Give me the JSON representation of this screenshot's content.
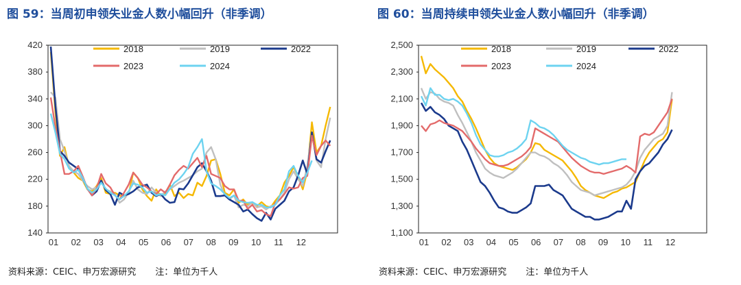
{
  "colors": {
    "2018": "#f5b800",
    "2019": "#bfbfbf",
    "2022": "#1b3a8c",
    "2023": "#e36a6a",
    "2024": "#6dd3f0"
  },
  "charts": [
    {
      "title": "图 59：当周初申领失业金人数小幅回升（非季调）",
      "source": "资料来源：CEIC、申万宏源研究",
      "note": "注：单位为千人"
    },
    {
      "title": "图 60：当周持续申领失业金人数小幅回升（非季调）",
      "source": "资料来源：CEIC、申万宏源研究",
      "note": "注：单位为千人"
    }
  ],
  "chart_data": [
    {
      "type": "line",
      "title": "图 59：当周初申领失业金人数小幅回升（非季调）",
      "xlabel": "",
      "ylabel": "",
      "ylim": [
        140,
        420
      ],
      "yticks": [
        "140",
        "180",
        "220",
        "260",
        "300",
        "340",
        "380",
        "420"
      ],
      "xticks": [
        "01",
        "02",
        "03",
        "04",
        "05",
        "06",
        "07",
        "08",
        "09",
        "10",
        "11",
        "12"
      ],
      "x_unit": "week",
      "legend": [
        "2018",
        "2019",
        "2022",
        "2023",
        "2024"
      ],
      "series": [
        {
          "name": "2018",
          "values": [
            410,
            320,
            255,
            268,
            238,
            230,
            222,
            218,
            205,
            202,
            210,
            222,
            200,
            198,
            200,
            196,
            195,
            198,
            230,
            222,
            205,
            195,
            188,
            205,
            195,
            198,
            212,
            195,
            200,
            192,
            198,
            196,
            215,
            210,
            225,
            248,
            250,
            228,
            200,
            196,
            205,
            185,
            190,
            182,
            185,
            180,
            186,
            180,
            178,
            188,
            196,
            215,
            225,
            238,
            225,
            205,
            232,
            305,
            260,
            270,
            300,
            328
          ]
        },
        {
          "name": "2019",
          "values": [
            350,
            342,
            280,
            262,
            240,
            232,
            228,
            218,
            210,
            205,
            208,
            218,
            205,
            202,
            198,
            185,
            190,
            200,
            218,
            205,
            200,
            198,
            208,
            200,
            195,
            202,
            205,
            210,
            215,
            218,
            222,
            226,
            232,
            236,
            260,
            268,
            250,
            212,
            196,
            190,
            196,
            178,
            182,
            180,
            186,
            178,
            180,
            175,
            180,
            182,
            190,
            200,
            220,
            232,
            220,
            210,
            240,
            290,
            248,
            238,
            280,
            312
          ]
        },
        {
          "name": "2022",
          "values": [
            418,
            330,
            262,
            255,
            245,
            240,
            235,
            222,
            206,
            196,
            202,
            218,
            204,
            198,
            182,
            200,
            196,
            198,
            202,
            208,
            210,
            212,
            200,
            195,
            198,
            190,
            185,
            186,
            206,
            205,
            214,
            226,
            238,
            244,
            232,
            218,
            195,
            195,
            196,
            190,
            186,
            182,
            172,
            175,
            168,
            162,
            158,
            170,
            160,
            176,
            182,
            188,
            202,
            208,
            226,
            248,
            228,
            290,
            250,
            245,
            262,
            278
          ]
        },
        {
          "name": "2023",
          "values": [
            342,
            298,
            262,
            228,
            228,
            232,
            240,
            224,
            206,
            196,
            206,
            228,
            214,
            208,
            196,
            190,
            200,
            212,
            230,
            222,
            212,
            208,
            202,
            198,
            205,
            200,
            212,
            226,
            234,
            240,
            236,
            244,
            252,
            238,
            255,
            228,
            225,
            222,
            210,
            205,
            205,
            188,
            188,
            176,
            182,
            172,
            174,
            168,
            165,
            185,
            190,
            198,
            208,
            206,
            208,
            222,
            225,
            285,
            256,
            270,
            278,
            270
          ]
        },
        {
          "name": "2024",
          "values": [
            318,
            290,
            258,
            250,
            236,
            230,
            234,
            222,
            206,
            200,
            205,
            215,
            206,
            200,
            196,
            190,
            195,
            202,
            214,
            212,
            208,
            200,
            202,
            196,
            198,
            196,
            206,
            215,
            220,
            228,
            238,
            258,
            268,
            280,
            232,
            214,
            210,
            205,
            198,
            192,
            196,
            188,
            186,
            185,
            186,
            182,
            182,
            178,
            178,
            182,
            196,
            205,
            232,
            240,
            225,
            215,
            230,
            248
          ]
        }
      ]
    },
    {
      "type": "line",
      "title": "图 60：当周持续申领失业金人数小幅回升（非季调）",
      "xlabel": "",
      "ylabel": "",
      "ylim": [
        1100,
        2500
      ],
      "yticks": [
        "1,100",
        "1,300",
        "1,500",
        "1,700",
        "1,900",
        "2,100",
        "2,300",
        "2,500"
      ],
      "xticks": [
        "01",
        "02",
        "03",
        "04",
        "05",
        "06",
        "07",
        "08",
        "09",
        "10",
        "11",
        "12"
      ],
      "x_unit": "week",
      "legend": [
        "2018",
        "2019",
        "2022",
        "2023",
        "2024"
      ],
      "series": [
        {
          "name": "2018",
          "values": [
            2420,
            2290,
            2360,
            2320,
            2290,
            2260,
            2220,
            2180,
            2120,
            2080,
            2010,
            1950,
            1880,
            1800,
            1720,
            1660,
            1620,
            1600,
            1590,
            1580,
            1570,
            1590,
            1620,
            1650,
            1700,
            1770,
            1760,
            1720,
            1700,
            1680,
            1660,
            1640,
            1600,
            1560,
            1510,
            1450,
            1420,
            1400,
            1380,
            1370,
            1360,
            1380,
            1400,
            1410,
            1430,
            1440,
            1460,
            1480,
            1560,
            1640,
            1700,
            1740,
            1780,
            1800,
            1850,
            2100
          ]
        },
        {
          "name": "2019",
          "values": [
            2180,
            2100,
            2150,
            2140,
            2100,
            2080,
            2070,
            2050,
            1980,
            1920,
            1850,
            1780,
            1700,
            1640,
            1580,
            1550,
            1530,
            1520,
            1510,
            1530,
            1550,
            1580,
            1620,
            1660,
            1700,
            1700,
            1680,
            1670,
            1650,
            1620,
            1600,
            1570,
            1530,
            1480,
            1450,
            1420,
            1410,
            1400,
            1380,
            1390,
            1400,
            1410,
            1420,
            1430,
            1440,
            1460,
            1500,
            1560,
            1660,
            1720,
            1760,
            1800,
            1820,
            1840,
            1900,
            2150
          ]
        },
        {
          "name": "2022",
          "values": [
            2070,
            2010,
            2040,
            2000,
            1980,
            1950,
            1900,
            1880,
            1860,
            1780,
            1720,
            1640,
            1560,
            1480,
            1450,
            1400,
            1340,
            1290,
            1280,
            1260,
            1250,
            1250,
            1270,
            1290,
            1320,
            1450,
            1450,
            1450,
            1460,
            1420,
            1400,
            1380,
            1330,
            1280,
            1260,
            1240,
            1220,
            1220,
            1200,
            1200,
            1210,
            1220,
            1240,
            1260,
            1260,
            1340,
            1280,
            1500,
            1560,
            1600,
            1620,
            1660,
            1700,
            1760,
            1800,
            1870
          ]
        },
        {
          "name": "2023",
          "values": [
            1900,
            1860,
            1910,
            1920,
            1940,
            1920,
            1910,
            1900,
            1880,
            1860,
            1820,
            1780,
            1730,
            1690,
            1650,
            1620,
            1610,
            1600,
            1600,
            1610,
            1630,
            1650,
            1670,
            1700,
            1740,
            1880,
            1860,
            1840,
            1820,
            1800,
            1780,
            1740,
            1700,
            1660,
            1630,
            1600,
            1580,
            1560,
            1550,
            1550,
            1540,
            1550,
            1560,
            1570,
            1580,
            1600,
            1580,
            1550,
            1820,
            1840,
            1830,
            1850,
            1900,
            1950,
            2000,
            2100
          ]
        },
        {
          "name": "2024",
          "values": [
            2120,
            2050,
            2180,
            2130,
            2130,
            2100,
            2090,
            2100,
            2080,
            2050,
            1990,
            1920,
            1830,
            1760,
            1720,
            1680,
            1670,
            1670,
            1680,
            1700,
            1710,
            1730,
            1760,
            1800,
            1940,
            1920,
            1890,
            1880,
            1860,
            1830,
            1790,
            1750,
            1720,
            1700,
            1680,
            1660,
            1650,
            1630,
            1620,
            1610,
            1620,
            1620,
            1630,
            1640,
            1650,
            1650
          ]
        }
      ]
    }
  ]
}
